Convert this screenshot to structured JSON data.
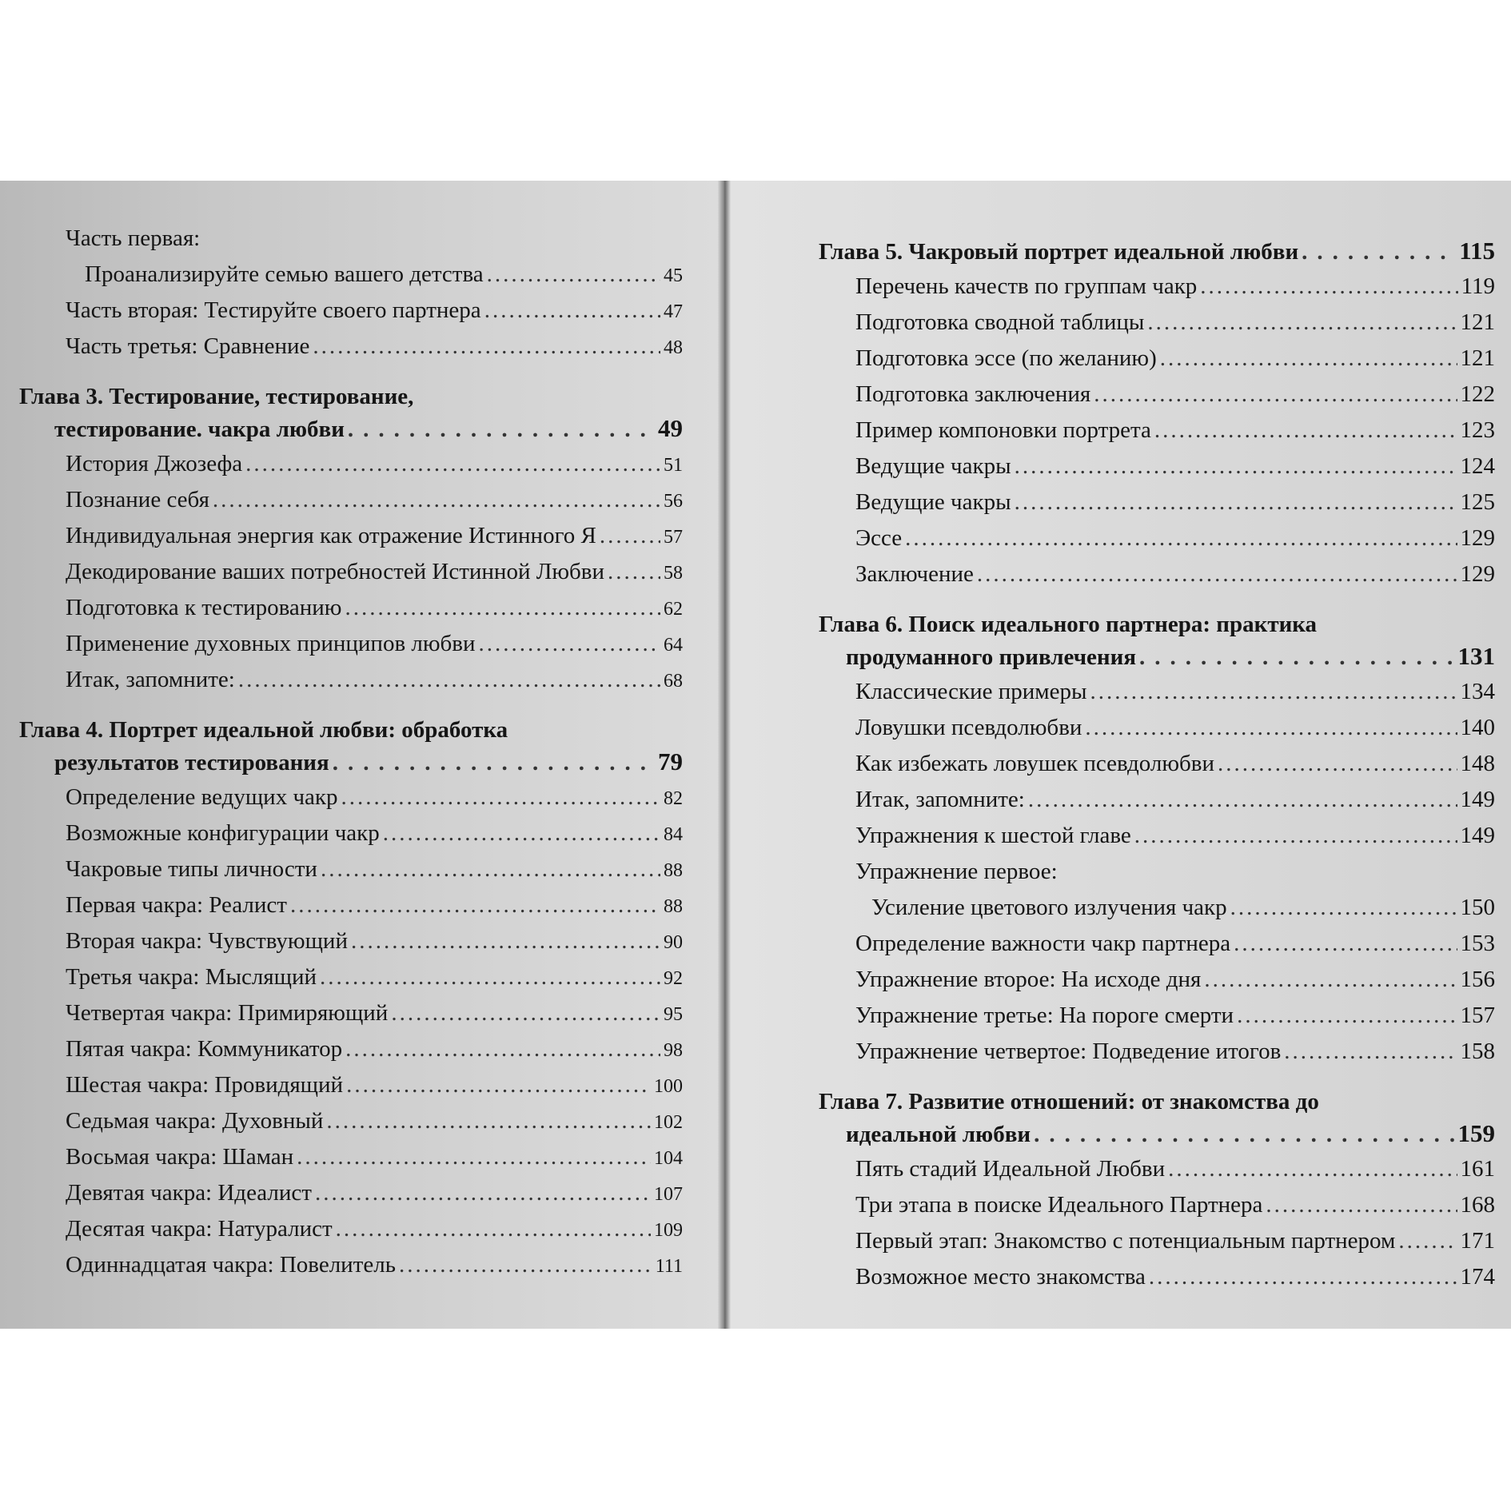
{
  "left_page": [
    {
      "type": "entry",
      "lines": [
        "Часть первая:",
        "Проанализируйте семью вашего детства"
      ],
      "page": "45"
    },
    {
      "type": "entry",
      "lines": [
        "Часть вторая: Тестируйте своего партнера"
      ],
      "page": "47"
    },
    {
      "type": "entry",
      "lines": [
        "Часть третья: Сравнение"
      ],
      "page": "48"
    },
    {
      "type": "chapter",
      "lines": [
        "Глава 3. Тестирование, тестирование,",
        "тестирование. чакра любви"
      ],
      "page": "49"
    },
    {
      "type": "entry",
      "lines": [
        "История Джозефа"
      ],
      "page": "51"
    },
    {
      "type": "entry",
      "lines": [
        "Познание себя"
      ],
      "page": "56"
    },
    {
      "type": "entry",
      "lines": [
        "Индивидуальная энергия как отражение Истинного Я"
      ],
      "page": "57"
    },
    {
      "type": "entry",
      "lines": [
        "Декодирование ваших потребностей Истинной Любви"
      ],
      "page": "58"
    },
    {
      "type": "entry",
      "lines": [
        "Подготовка к тестированию"
      ],
      "page": "62"
    },
    {
      "type": "entry",
      "lines": [
        "Применение духовных принципов любви"
      ],
      "page": "64"
    },
    {
      "type": "entry",
      "lines": [
        "Итак, запомните:"
      ],
      "page": "68"
    },
    {
      "type": "chapter",
      "lines": [
        "Глава 4. Портрет идеальной любви: обработка",
        "результатов тестирования"
      ],
      "page": "79"
    },
    {
      "type": "entry",
      "lines": [
        "Определение ведущих чакр"
      ],
      "page": "82"
    },
    {
      "type": "entry",
      "lines": [
        "Возможные конфигурации чакр"
      ],
      "page": "84"
    },
    {
      "type": "entry",
      "lines": [
        "Чакровые типы личности"
      ],
      "page": "88"
    },
    {
      "type": "entry",
      "lines": [
        "Первая чакра: Реалист"
      ],
      "page": "88"
    },
    {
      "type": "entry",
      "lines": [
        "Вторая чакра: Чувствующий"
      ],
      "page": "90"
    },
    {
      "type": "entry",
      "lines": [
        "Третья чакра: Мыслящий"
      ],
      "page": "92"
    },
    {
      "type": "entry",
      "lines": [
        "Четвертая чакра: Примиряющий"
      ],
      "page": "95"
    },
    {
      "type": "entry",
      "lines": [
        "Пятая чакра: Коммуникатор"
      ],
      "page": "98"
    },
    {
      "type": "entry",
      "lines": [
        "Шестая чакра: Провидящий"
      ],
      "page": "100"
    },
    {
      "type": "entry",
      "lines": [
        "Седьмая чакра: Духовный"
      ],
      "page": "102"
    },
    {
      "type": "entry",
      "lines": [
        "Восьмая чакра: Шаман"
      ],
      "page": "104"
    },
    {
      "type": "entry",
      "lines": [
        "Девятая чакра: Идеалист"
      ],
      "page": "107"
    },
    {
      "type": "entry",
      "lines": [
        "Десятая чакра: Натуралист"
      ],
      "page": "109"
    },
    {
      "type": "entry",
      "lines": [
        "Одиннадцатая чакра: Повелитель"
      ],
      "page": "111"
    }
  ],
  "right_page": [
    {
      "type": "chapter",
      "lines": [
        "Глава 5. Чакровый портрет идеальной любви"
      ],
      "page": "115"
    },
    {
      "type": "entry",
      "lines": [
        "Перечень качеств по группам чакр"
      ],
      "page": "119"
    },
    {
      "type": "entry",
      "lines": [
        "Подготовка сводной таблицы"
      ],
      "page": "121"
    },
    {
      "type": "entry",
      "lines": [
        "Подготовка эссе (по желанию)"
      ],
      "page": "121"
    },
    {
      "type": "entry",
      "lines": [
        "Подготовка заключения"
      ],
      "page": "122"
    },
    {
      "type": "entry",
      "lines": [
        "Пример компоновки портрета"
      ],
      "page": "123"
    },
    {
      "type": "entry",
      "lines": [
        "Ведущие чакры"
      ],
      "page": "124"
    },
    {
      "type": "entry",
      "lines": [
        "Ведущие чакры"
      ],
      "page": "125"
    },
    {
      "type": "entry",
      "lines": [
        "Эссе"
      ],
      "page": "129"
    },
    {
      "type": "entry",
      "lines": [
        "Заключение"
      ],
      "page": "129"
    },
    {
      "type": "chapter",
      "lines": [
        "Глава 6. Поиск идеального партнера: практика",
        "продуманного привлечения"
      ],
      "page": "131"
    },
    {
      "type": "entry",
      "lines": [
        "Классические примеры"
      ],
      "page": "134"
    },
    {
      "type": "entry",
      "lines": [
        "Ловушки псевдолюбви"
      ],
      "page": "140"
    },
    {
      "type": "entry",
      "lines": [
        "Как избежать ловушек псевдолюбви"
      ],
      "page": "148"
    },
    {
      "type": "entry",
      "lines": [
        "Итак, запомните:"
      ],
      "page": "149"
    },
    {
      "type": "entry",
      "lines": [
        "Упражнения к шестой главе"
      ],
      "page": "149"
    },
    {
      "type": "entry",
      "lines": [
        "Упражнение первое:",
        "Усиление цветового излучения чакр"
      ],
      "page": "150"
    },
    {
      "type": "entry",
      "lines": [
        "Определение важности чакр партнера"
      ],
      "page": "153"
    },
    {
      "type": "entry",
      "lines": [
        "Упражнение второе: На исходе дня"
      ],
      "page": "156"
    },
    {
      "type": "entry",
      "lines": [
        "Упражнение третье: На пороге смерти"
      ],
      "page": "157"
    },
    {
      "type": "entry",
      "lines": [
        "Упражнение четвертое: Подведение итогов"
      ],
      "page": "158"
    },
    {
      "type": "chapter",
      "lines": [
        "Глава 7. Развитие отношений: от знакомства до",
        "идеальной любви"
      ],
      "page": "159"
    },
    {
      "type": "entry",
      "lines": [
        "Пять стадий Идеальной Любви"
      ],
      "page": "161"
    },
    {
      "type": "entry",
      "lines": [
        "Три этапа в поиске Идеального Партнера"
      ],
      "page": "168"
    },
    {
      "type": "entry",
      "lines": [
        "Первый этап: Знакомство с потенциальным партнером"
      ],
      "page": "171"
    },
    {
      "type": "entry",
      "lines": [
        "Возможное место знакомства"
      ],
      "page": "174"
    }
  ]
}
